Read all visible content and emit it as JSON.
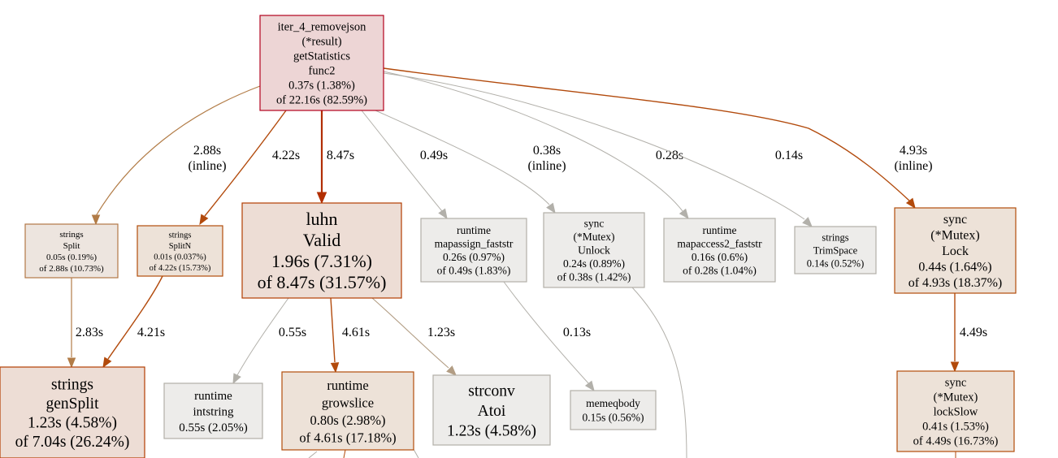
{
  "colors": {
    "hot_edge": "#b22e00",
    "warm_edge": "#b24a0c",
    "tan_edge": "#b27c47",
    "mid_edge": "#b29d84",
    "grey_edge": "#b2b0aa",
    "hot_fill": "#edd5d5",
    "hot_stroke": "#b2001d",
    "warm_fill": "#edddd5",
    "warm_stroke": "#b23c00",
    "orange_fill": "#ede2d8",
    "orange_stroke": "#b24e0a",
    "tan_fill": "#ede5df",
    "tan_stroke": "#b27746",
    "grey_fill": "#edecea",
    "grey_stroke": "#b2afa8"
  },
  "nodes": [
    {
      "id": "func2",
      "lines": [
        "iter_4_removejson",
        "(*result)",
        "getStatistics",
        "func2",
        "0.37s (1.38%)",
        "of 22.16s (82.59%)"
      ],
      "style": "hot"
    },
    {
      "id": "strings_split",
      "lines": [
        "strings",
        "Split",
        "0.05s (0.19%)",
        "of 2.88s (10.73%)"
      ],
      "style": "tan"
    },
    {
      "id": "strings_splitn",
      "lines": [
        "strings",
        "SplitN",
        "0.01s (0.037%)",
        "of 4.22s (15.73%)"
      ],
      "style": "orange"
    },
    {
      "id": "luhn_valid",
      "lines": [
        "luhn",
        "Valid",
        "1.96s (7.31%)",
        "of 8.47s (31.57%)"
      ],
      "style": "warm"
    },
    {
      "id": "mapassign",
      "lines": [
        "runtime",
        "mapassign_faststr",
        "0.26s (0.97%)",
        "of 0.49s (1.83%)"
      ],
      "style": "grey"
    },
    {
      "id": "mutex_unlock",
      "lines": [
        "sync",
        "(*Mutex)",
        "Unlock",
        "0.24s (0.89%)",
        "of 0.38s (1.42%)"
      ],
      "style": "grey"
    },
    {
      "id": "mapaccess2",
      "lines": [
        "runtime",
        "mapaccess2_faststr",
        "0.16s (0.6%)",
        "of 0.28s (1.04%)"
      ],
      "style": "grey"
    },
    {
      "id": "trimspace",
      "lines": [
        "strings",
        "TrimSpace",
        "0.14s (0.52%)"
      ],
      "style": "grey"
    },
    {
      "id": "mutex_lock",
      "lines": [
        "sync",
        "(*Mutex)",
        "Lock",
        "0.44s (1.64%)",
        "of 4.93s (18.37%)"
      ],
      "style": "orange"
    },
    {
      "id": "gensplit",
      "lines": [
        "strings",
        "genSplit",
        "1.23s (4.58%)",
        "of 7.04s (26.24%)"
      ],
      "style": "warm"
    },
    {
      "id": "intstring",
      "lines": [
        "runtime",
        "intstring",
        "0.55s (2.05%)"
      ],
      "style": "grey"
    },
    {
      "id": "growslice",
      "lines": [
        "runtime",
        "growslice",
        "0.80s (2.98%)",
        "of 4.61s (17.18%)"
      ],
      "style": "orange"
    },
    {
      "id": "atoi",
      "lines": [
        "strconv",
        "Atoi",
        "1.23s (4.58%)"
      ],
      "style": "grey"
    },
    {
      "id": "memeqbody",
      "lines": [
        "memeqbody",
        "0.15s (0.56%)"
      ],
      "style": "grey"
    },
    {
      "id": "lockslow",
      "lines": [
        "sync",
        "(*Mutex)",
        "lockSlow",
        "0.41s (1.53%)",
        "of 4.49s (16.73%)"
      ],
      "style": "orange"
    }
  ],
  "edges": [
    {
      "id": "func2-split",
      "label": [
        "2.88s",
        "(inline)"
      ],
      "style": "tan"
    },
    {
      "id": "func2-splitn",
      "label": [
        "4.22s"
      ],
      "style": "warm"
    },
    {
      "id": "func2-luhn",
      "label": [
        "8.47s"
      ],
      "style": "hot"
    },
    {
      "id": "func2-mapassign",
      "label": [
        "0.49s"
      ],
      "style": "grey"
    },
    {
      "id": "func2-unlock",
      "label": [
        "0.38s",
        "(inline)"
      ],
      "style": "grey"
    },
    {
      "id": "func2-mapaccess2",
      "label": [
        "0.28s"
      ],
      "style": "grey"
    },
    {
      "id": "func2-trimspace",
      "label": [
        "0.14s"
      ],
      "style": "grey"
    },
    {
      "id": "func2-lock",
      "label": [
        "4.93s",
        "(inline)"
      ],
      "style": "warm"
    },
    {
      "id": "split-gensplit",
      "label": [
        "2.83s"
      ],
      "style": "tan"
    },
    {
      "id": "splitn-gensplit",
      "label": [
        "4.21s"
      ],
      "style": "warm"
    },
    {
      "id": "luhn-intstring",
      "label": [
        "0.55s"
      ],
      "style": "grey"
    },
    {
      "id": "luhn-growslice",
      "label": [
        "4.61s"
      ],
      "style": "warm"
    },
    {
      "id": "luhn-atoi",
      "label": [
        "1.23s"
      ],
      "style": "mid"
    },
    {
      "id": "mapassign-memeqbody",
      "label": [
        "0.13s"
      ],
      "style": "grey"
    },
    {
      "id": "lock-lockslow",
      "label": [
        "4.49s"
      ],
      "style": "warm"
    }
  ]
}
